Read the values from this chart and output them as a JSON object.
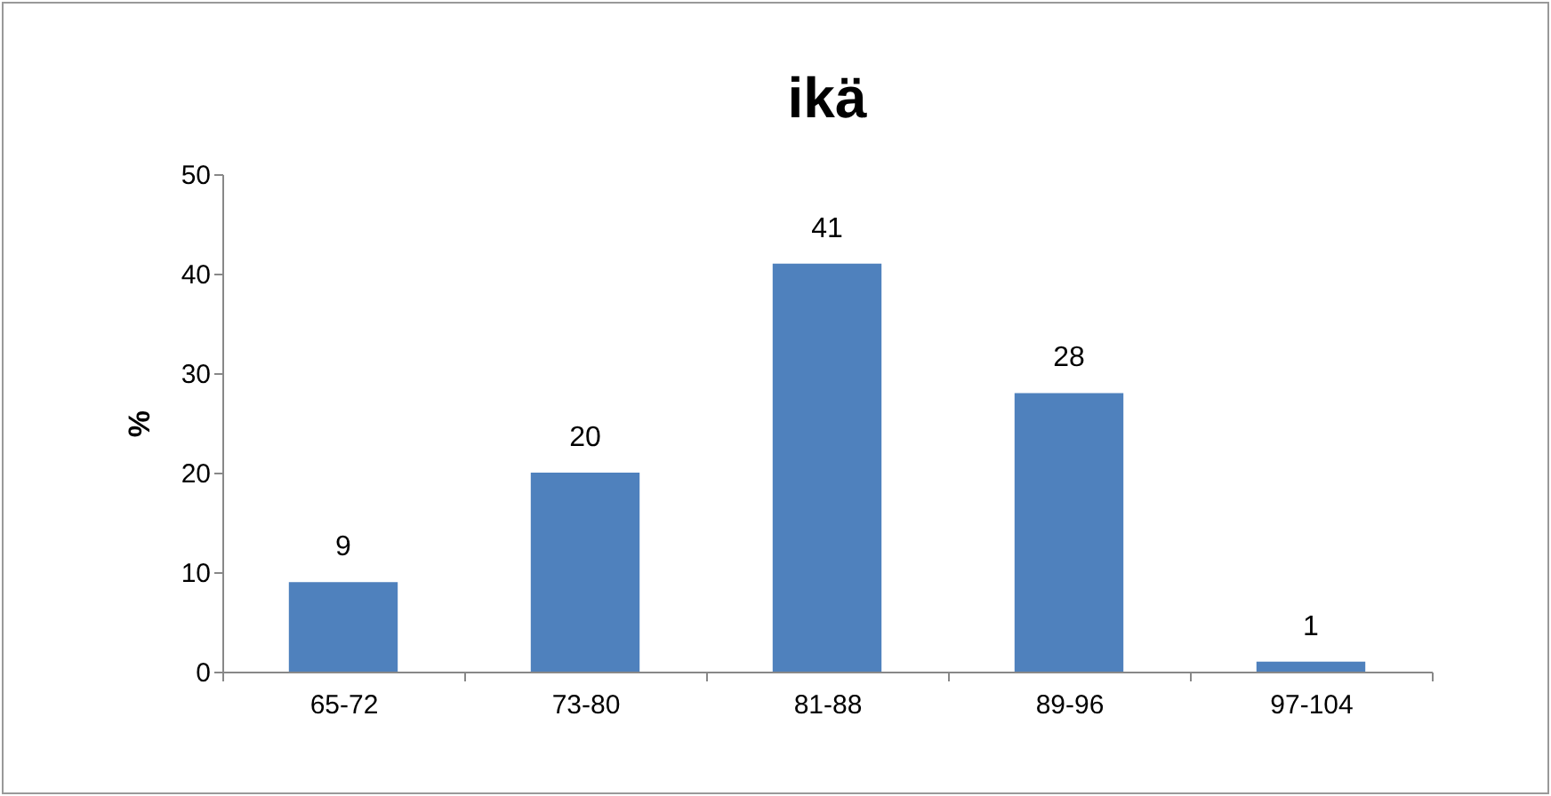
{
  "chart_data": {
    "type": "bar",
    "title": "ikä",
    "ylabel": "%",
    "categories": [
      "65-72",
      "73-80",
      "81-88",
      "89-96",
      "97-104"
    ],
    "values": [
      9,
      20,
      41,
      28,
      1
    ],
    "color": "#4f81bd",
    "ylim": [
      0,
      50
    ],
    "yticks": [
      0,
      10,
      20,
      30,
      40,
      50
    ],
    "grid": false,
    "data_labels": true
  }
}
